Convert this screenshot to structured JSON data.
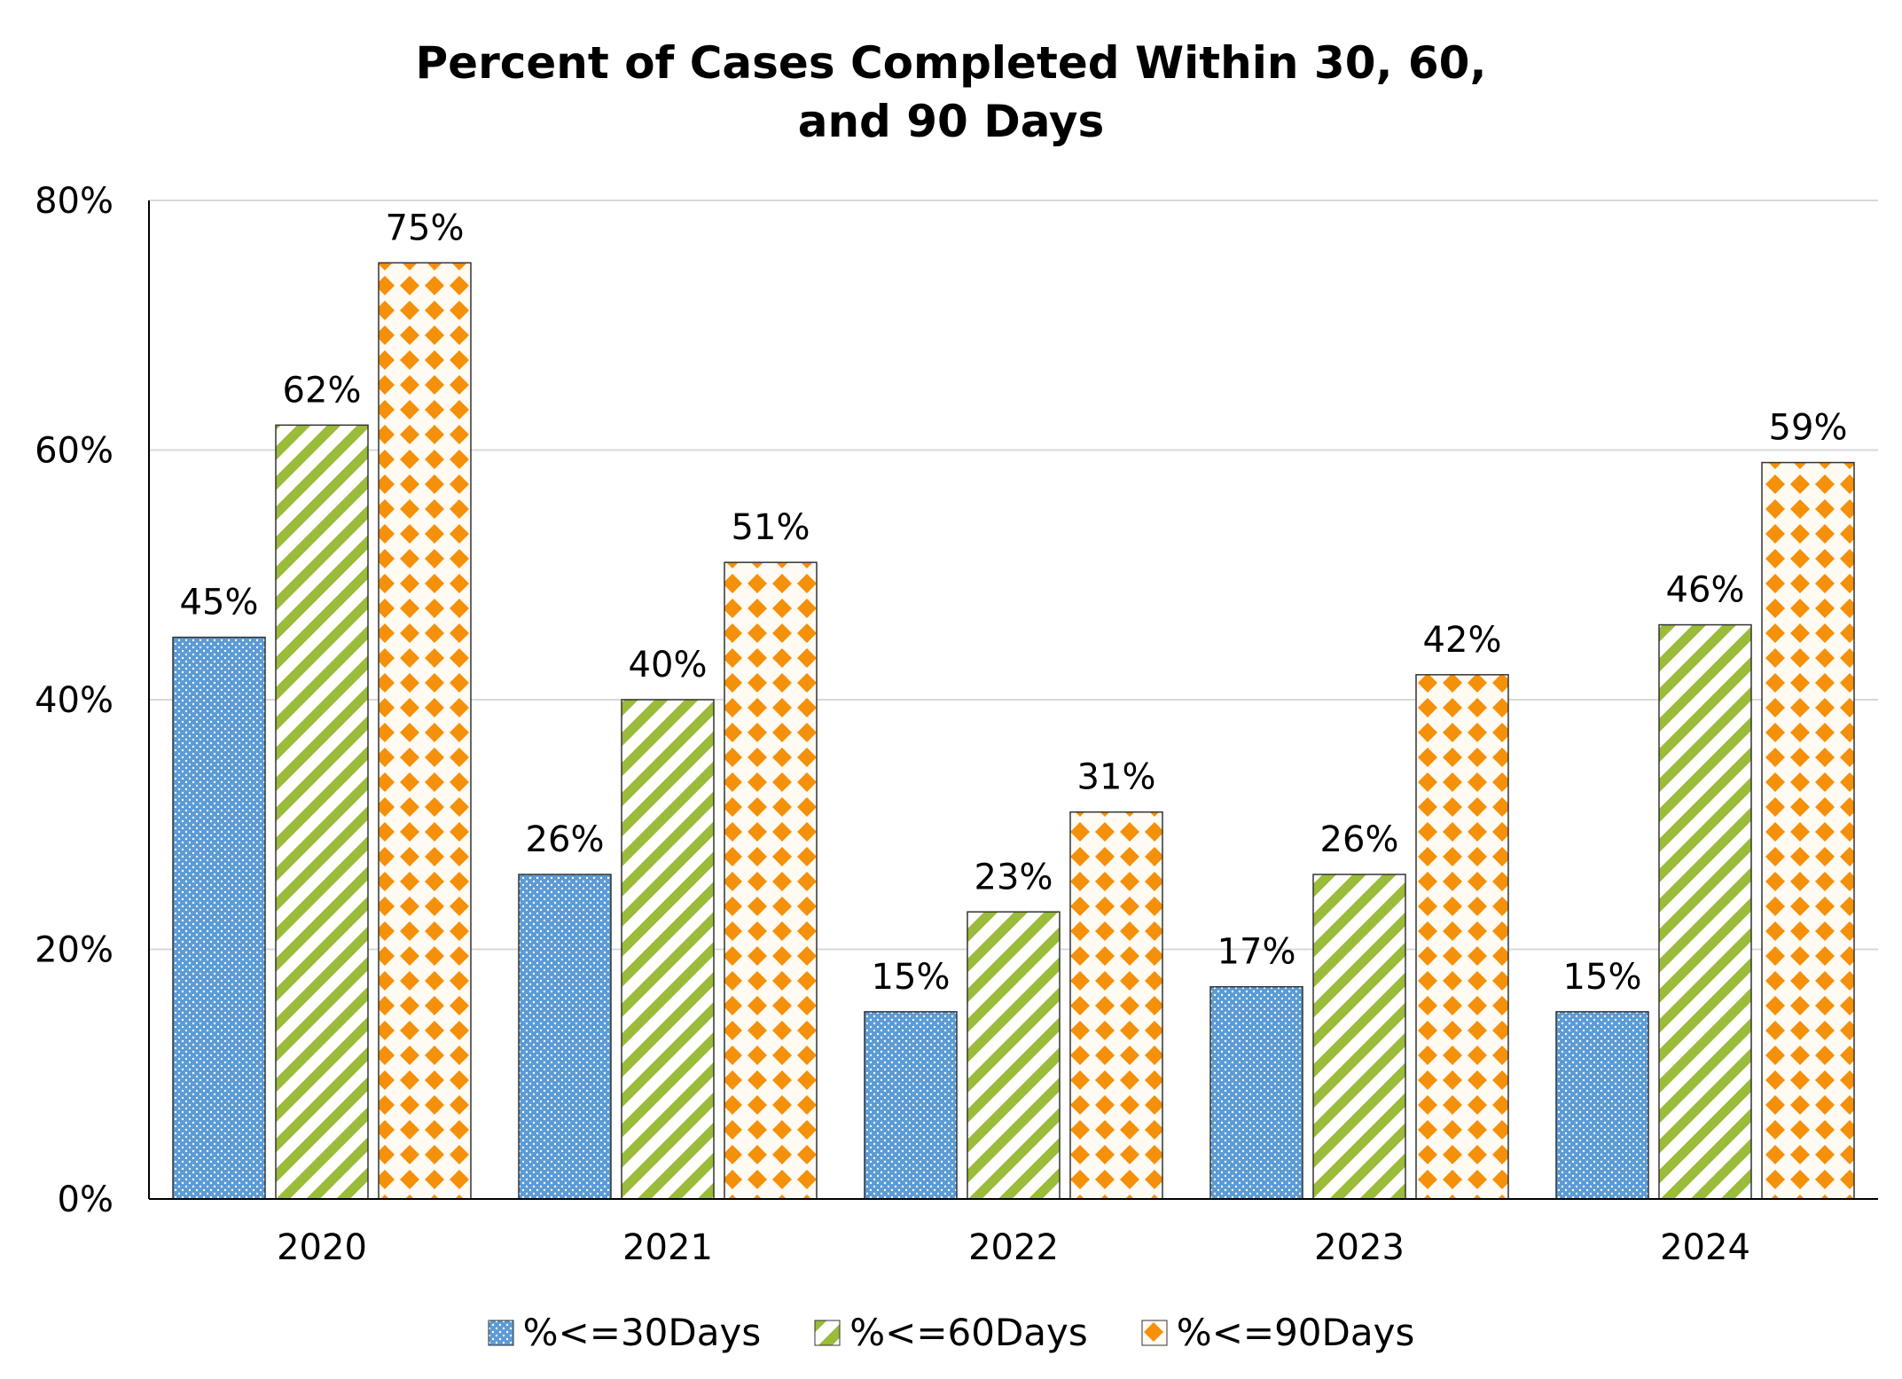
{
  "chart_data": {
    "type": "bar",
    "title": "Percent of Cases Completed Within 30, 60, and 90 Days",
    "title_lines": [
      "Percent of Cases Completed Within 30, 60,",
      "and 90 Days"
    ],
    "categories": [
      "2020",
      "2021",
      "2022",
      "2023",
      "2024"
    ],
    "series": [
      {
        "name": "%<=30Days",
        "values": [
          45,
          26,
          15,
          17,
          15
        ],
        "color": "#5b9bd5",
        "pattern": "dots"
      },
      {
        "name": "%<=60Days",
        "values": [
          62,
          40,
          23,
          26,
          46
        ],
        "color": "#9bbb3a",
        "pattern": "diagonal-stripes"
      },
      {
        "name": "%<=90Days",
        "values": [
          75,
          51,
          31,
          42,
          59
        ],
        "color": "#f5900a",
        "pattern": "diamonds"
      }
    ],
    "data_label_suffix": "%",
    "y_ticks": [
      "0%",
      "20%",
      "40%",
      "60%",
      "80%"
    ],
    "ylim": [
      0,
      80
    ],
    "grid": true,
    "legend_position": "bottom",
    "xlabel": "",
    "ylabel": ""
  }
}
